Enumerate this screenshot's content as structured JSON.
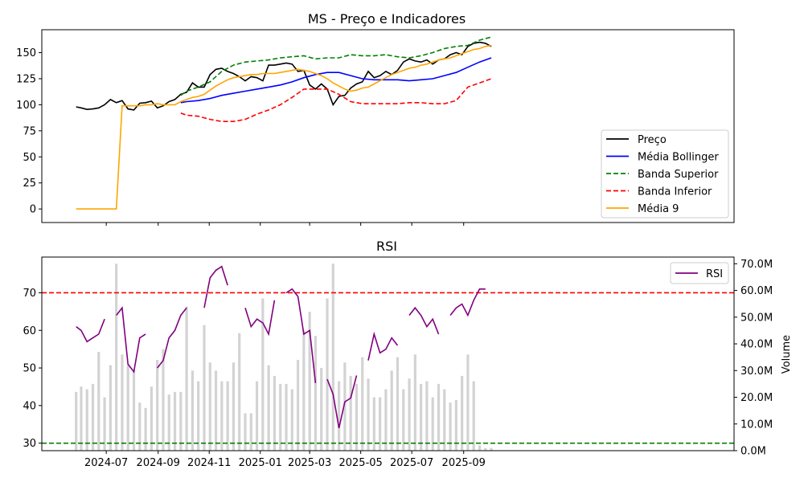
{
  "chart_data": [
    {
      "type": "line",
      "title": "MS - Preço e Indicadores",
      "xlabel": "",
      "ylabel": "",
      "ylim": [
        -13,
        172
      ],
      "yticks": [
        0,
        25,
        50,
        75,
        100,
        125,
        150
      ],
      "xlim": [
        -47,
        780
      ],
      "xticks": [
        {
          "day": 30,
          "label": "2024-07"
        },
        {
          "day": 92,
          "label": "2024-09"
        },
        {
          "day": 153,
          "label": "2024-11"
        },
        {
          "day": 214,
          "label": "2025-01"
        },
        {
          "day": 273,
          "label": "2025-03"
        },
        {
          "day": 334,
          "label": "2025-05"
        },
        {
          "day": 395,
          "label": "2025-07"
        },
        {
          "day": 457,
          "label": "2025-09"
        }
      ],
      "legend_position": "lower-right",
      "series": [
        {
          "name": "Preço",
          "color": "#000000",
          "style": "solid",
          "x": [
            -6,
            0,
            7,
            14,
            21,
            28,
            35,
            42,
            49,
            56,
            63,
            70,
            77,
            84,
            91,
            98,
            105,
            112,
            119,
            126,
            133,
            140,
            147,
            154,
            161,
            168,
            175,
            182,
            189,
            196,
            203,
            210,
            217,
            224,
            231,
            238,
            245,
            252,
            259,
            266,
            273,
            280,
            287,
            294,
            301,
            308,
            315,
            322,
            329,
            336,
            343,
            350,
            357,
            364,
            371,
            378,
            385,
            392,
            399,
            406,
            413,
            420,
            427,
            434,
            441,
            448,
            455,
            462,
            469,
            476,
            483,
            490
          ],
          "y": [
            98,
            97,
            95.5,
            96,
            97,
            100,
            105,
            102,
            104,
            96,
            95,
            101.5,
            102,
            103.5,
            97,
            99,
            103,
            105,
            110,
            112,
            121,
            117,
            117,
            129,
            134,
            135,
            132,
            130,
            127,
            123,
            127,
            126,
            123,
            138,
            138,
            139,
            140,
            139,
            132,
            133,
            119,
            115,
            120,
            115,
            100,
            108,
            109,
            116,
            120,
            122,
            132,
            126,
            128,
            132,
            129,
            133,
            141,
            144,
            142,
            141,
            143,
            139,
            143,
            144,
            148,
            150,
            148,
            156,
            159,
            160,
            159,
            156
          ]
        },
        {
          "name": "Média Bollinger",
          "color": "#0000ff",
          "style": "solid",
          "x": [
            119,
            126,
            140,
            154,
            168,
            182,
            196,
            210,
            224,
            238,
            252,
            266,
            280,
            294,
            308,
            322,
            336,
            350,
            364,
            378,
            392,
            406,
            420,
            434,
            448,
            462,
            476,
            490
          ],
          "y": [
            102,
            103,
            104,
            106,
            109,
            111,
            113,
            115,
            117,
            119,
            122,
            126,
            129,
            131,
            131,
            128,
            125,
            124,
            124,
            124,
            123,
            124,
            125,
            128,
            131,
            136,
            141,
            145
          ]
        },
        {
          "name": "Banda Superior",
          "color": "#008000",
          "style": "dashed",
          "x": [
            119,
            126,
            140,
            154,
            168,
            182,
            196,
            210,
            224,
            238,
            252,
            266,
            280,
            294,
            308,
            322,
            336,
            350,
            364,
            378,
            392,
            406,
            420,
            434,
            448,
            462,
            476,
            490
          ],
          "y": [
            109,
            113,
            117,
            122,
            132,
            138,
            141,
            142,
            143,
            145,
            146,
            147,
            144,
            145,
            145,
            148,
            147,
            147,
            148,
            146,
            145,
            147,
            150,
            154,
            156,
            157,
            162,
            165
          ]
        },
        {
          "name": "Banda Inferior",
          "color": "#ff0000",
          "style": "dashed",
          "x": [
            119,
            126,
            140,
            154,
            168,
            182,
            196,
            210,
            224,
            238,
            252,
            266,
            280,
            294,
            308,
            322,
            336,
            350,
            364,
            378,
            392,
            406,
            420,
            434,
            448,
            462,
            476,
            490
          ],
          "y": [
            92,
            90,
            89,
            86,
            84,
            84,
            86,
            91,
            95,
            100,
            107,
            115,
            115,
            115,
            110,
            103,
            101,
            101,
            101,
            101,
            102,
            102,
            101,
            101,
            104,
            117,
            121,
            125
          ]
        },
        {
          "name": "Média 9",
          "color": "#ffa500",
          "style": "solid",
          "x": [
            -6,
            0,
            7,
            14,
            21,
            28,
            35,
            42,
            49,
            56,
            63,
            70,
            77,
            84,
            91,
            98,
            105,
            112,
            119,
            126,
            133,
            140,
            147,
            154,
            161,
            168,
            175,
            182,
            189,
            196,
            203,
            210,
            217,
            224,
            231,
            238,
            245,
            252,
            259,
            266,
            273,
            280,
            287,
            294,
            301,
            308,
            315,
            322,
            329,
            336,
            343,
            350,
            357,
            364,
            371,
            378,
            385,
            392,
            399,
            406,
            413,
            420,
            427,
            434,
            441,
            448,
            455,
            462,
            469,
            476,
            483,
            490
          ],
          "y": [
            0,
            0,
            0,
            0,
            0,
            0,
            0,
            0,
            99,
            99,
            99,
            99,
            100,
            100,
            101,
            100,
            100,
            100,
            103,
            105,
            107,
            108,
            110,
            114,
            118,
            121,
            124,
            126,
            127,
            128,
            129,
            129,
            130,
            130,
            130,
            131,
            132,
            133,
            134,
            133,
            132,
            130,
            128,
            125,
            121,
            118,
            115,
            113,
            114,
            116,
            117,
            120,
            123,
            126,
            129,
            131,
            133,
            135,
            136,
            138,
            139,
            141,
            143,
            144,
            145,
            147,
            149,
            151,
            153,
            154,
            156,
            157
          ]
        }
      ]
    },
    {
      "type": "line",
      "title": "RSI",
      "xlabel": "",
      "ylabel": "",
      "ylim": [
        28,
        79.5
      ],
      "yticks": [
        30,
        40,
        50,
        60,
        70
      ],
      "secondary_axis": {
        "label": "Volume",
        "ylim": [
          0,
          72.5
        ],
        "ticks": [
          0,
          10,
          20,
          30,
          40,
          50,
          60,
          70
        ],
        "tick_labels": [
          "0.0M",
          "10.0M",
          "20.0M",
          "30.0M",
          "40.0M",
          "50.0M",
          "60.0M",
          "70.0M"
        ]
      },
      "legend_position": "top-right",
      "reference_lines": [
        {
          "value": 70,
          "color": "#ff0000",
          "style": "dashed"
        },
        {
          "value": 30,
          "color": "#008000",
          "style": "dashed"
        }
      ],
      "series": [
        {
          "name": "RSI",
          "color": "#800080",
          "style": "solid",
          "x": [
            -6,
            0,
            7,
            14,
            21,
            28,
            35,
            42,
            49,
            56,
            63,
            70,
            77,
            84,
            91,
            98,
            105,
            112,
            119,
            126,
            133,
            140,
            147,
            154,
            161,
            168,
            175,
            182,
            189,
            196,
            203,
            210,
            217,
            224,
            231,
            238,
            245,
            252,
            259,
            266,
            273,
            280,
            287,
            294,
            301,
            308,
            315,
            322,
            329,
            336,
            343,
            350,
            357,
            364,
            371,
            378,
            385,
            392,
            399,
            406,
            413,
            420,
            427,
            434,
            441,
            448,
            455,
            462,
            469,
            476,
            483,
            490
          ],
          "y": [
            61,
            60,
            57,
            58,
            59,
            63,
            null,
            64,
            66,
            51,
            49,
            58,
            59,
            null,
            50,
            52,
            58,
            60,
            64,
            66,
            null,
            null,
            66,
            74,
            76,
            77,
            72,
            null,
            null,
            66,
            61,
            63,
            62,
            59,
            68,
            null,
            70,
            71,
            69,
            59,
            60,
            46,
            null,
            47,
            43,
            34,
            41,
            42,
            48,
            null,
            52,
            59,
            54,
            55,
            58,
            56,
            null,
            64,
            66,
            64,
            61,
            63,
            59,
            null,
            64,
            66,
            67,
            64,
            68,
            71,
            71,
            null
          ]
        },
        {
          "name": "Volume",
          "color": "#d3d3d3",
          "style": "bar",
          "axis": "secondary",
          "x": [
            -6,
            0,
            7,
            14,
            21,
            28,
            35,
            42,
            49,
            56,
            63,
            70,
            77,
            84,
            91,
            98,
            105,
            112,
            119,
            126,
            133,
            140,
            147,
            154,
            161,
            168,
            175,
            182,
            189,
            196,
            203,
            210,
            217,
            224,
            231,
            238,
            245,
            252,
            259,
            266,
            273,
            280,
            287,
            294,
            301,
            308,
            315,
            322,
            329,
            336,
            343,
            350,
            357,
            364,
            371,
            378,
            385,
            392,
            399,
            406,
            413,
            420,
            427,
            434,
            441,
            448,
            455,
            462,
            469,
            476,
            483,
            490
          ],
          "y": [
            22,
            24,
            23,
            25,
            37,
            20,
            32,
            70,
            36,
            32,
            30,
            18,
            16,
            24,
            34,
            38,
            21,
            22,
            22,
            54,
            30,
            26,
            47,
            33,
            30,
            26,
            26,
            33,
            44,
            14,
            14,
            26,
            57,
            32,
            28,
            25,
            25,
            23,
            34,
            45,
            52,
            43,
            31,
            57,
            70,
            26,
            33,
            28,
            25,
            35,
            27,
            20,
            20,
            23,
            30,
            35,
            23,
            27,
            36,
            25,
            26,
            20,
            25,
            23,
            18,
            19,
            28,
            36,
            26,
            2,
            1,
            1
          ]
        }
      ]
    }
  ]
}
